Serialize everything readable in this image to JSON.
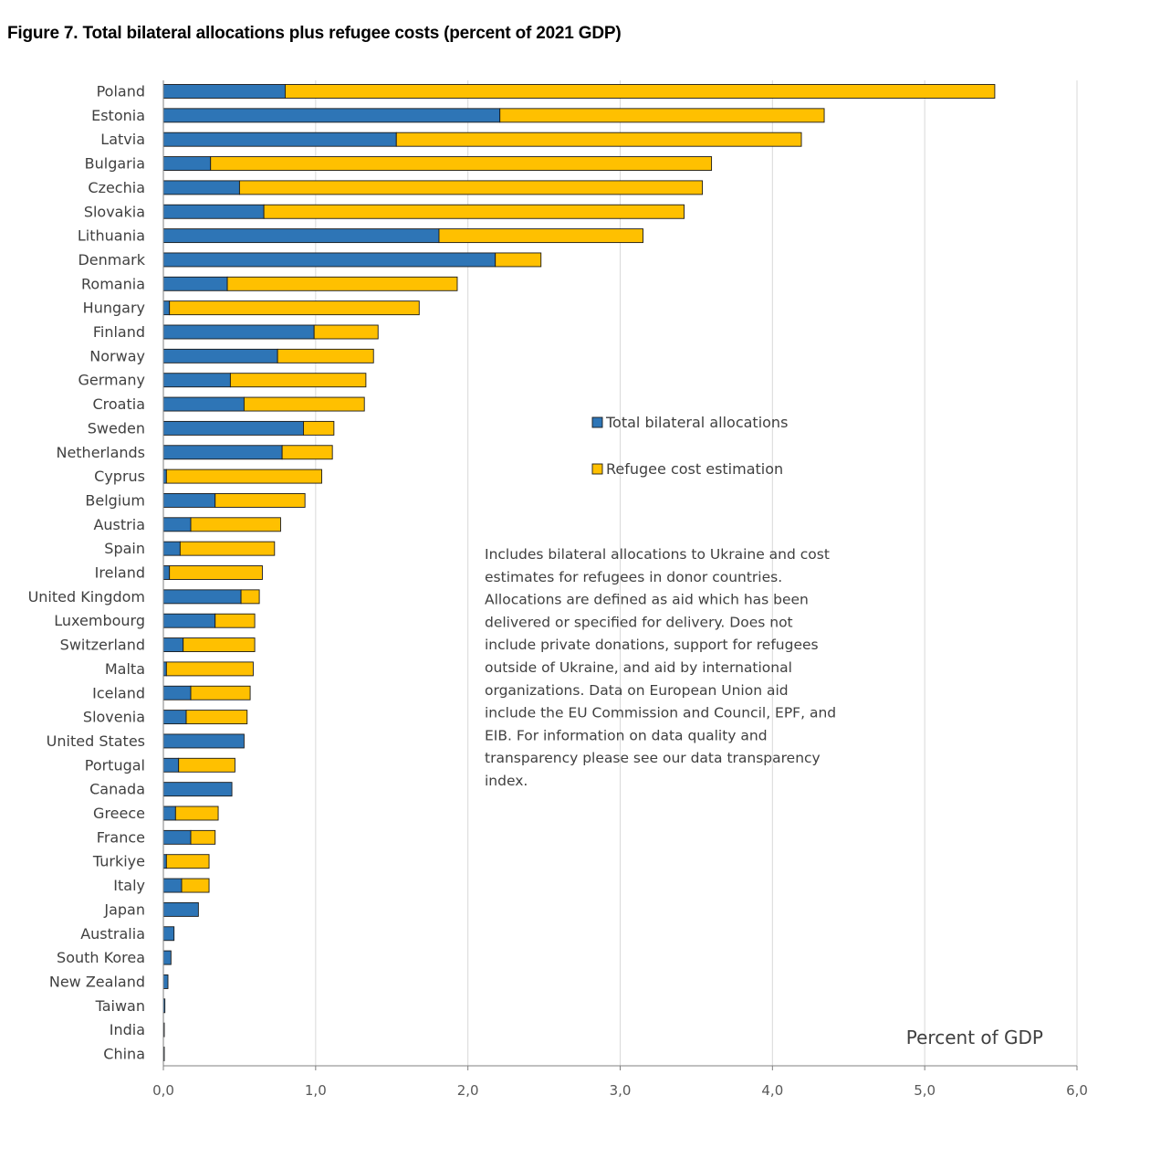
{
  "title": "Figure 7. Total bilateral allocations plus refugee costs (percent of 2021 GDP)",
  "chart_data": {
    "type": "bar",
    "orientation": "horizontal",
    "stacked": true,
    "categories": [
      "Poland",
      "Estonia",
      "Latvia",
      "Bulgaria",
      "Czechia",
      "Slovakia",
      "Lithuania",
      "Denmark",
      "Romania",
      "Hungary",
      "Finland",
      "Norway",
      "Germany",
      "Croatia",
      "Sweden",
      "Netherlands",
      "Cyprus",
      "Belgium",
      "Austria",
      "Spain",
      "Ireland",
      "United Kingdom",
      "Luxembourg",
      "Switzerland",
      "Malta",
      "Iceland",
      "Slovenia",
      "United States",
      "Portugal",
      "Canada",
      "Greece",
      "France",
      "Turkiye",
      "Italy",
      "Japan",
      "Australia",
      "South Korea",
      "New Zealand",
      "Taiwan",
      "India",
      "China"
    ],
    "series": [
      {
        "name": "Total bilateral allocations",
        "color": "#2e75b6",
        "values": [
          0.8,
          2.21,
          1.53,
          0.31,
          0.5,
          0.66,
          1.81,
          2.18,
          0.42,
          0.04,
          0.99,
          0.75,
          0.44,
          0.53,
          0.92,
          0.78,
          0.02,
          0.34,
          0.18,
          0.11,
          0.04,
          0.51,
          0.34,
          0.13,
          0.02,
          0.18,
          0.15,
          0.53,
          0.1,
          0.45,
          0.08,
          0.18,
          0.02,
          0.12,
          0.23,
          0.07,
          0.05,
          0.03,
          0.01,
          0.005,
          0.005
        ]
      },
      {
        "name": "Refugee cost estimation",
        "color": "#ffc000",
        "values": [
          4.66,
          2.13,
          2.66,
          3.29,
          3.04,
          2.76,
          1.34,
          0.3,
          1.51,
          1.64,
          0.42,
          0.63,
          0.89,
          0.79,
          0.2,
          0.33,
          1.02,
          0.59,
          0.59,
          0.62,
          0.61,
          0.12,
          0.26,
          0.47,
          0.57,
          0.39,
          0.4,
          0.0,
          0.37,
          0.0,
          0.28,
          0.16,
          0.28,
          0.18,
          0.0,
          0.0,
          0.0,
          0.0,
          0.0,
          0.0,
          0.0
        ]
      }
    ],
    "xlim": [
      0,
      6
    ],
    "x_ticks": [
      "0,0",
      "1,0",
      "2,0",
      "3,0",
      "4,0",
      "5,0",
      "6,0"
    ],
    "xlabel": "Percent of GDP",
    "grid": "vertical",
    "legend_position": "center-right",
    "note": [
      "Includes bilateral allocations to Ukraine and cost",
      "estimates for refugees in donor countries.",
      "Allocations are defined as aid which has been",
      "delivered or specified for delivery. Does not",
      "include private donations, support for refugees",
      "outside of Ukraine, and aid by international",
      "organizations. Data on European Union aid",
      "include the EU Commission and Council, EPF, and",
      "EIB. For information on data quality and",
      "transparency please see our data transparency",
      "index."
    ]
  }
}
